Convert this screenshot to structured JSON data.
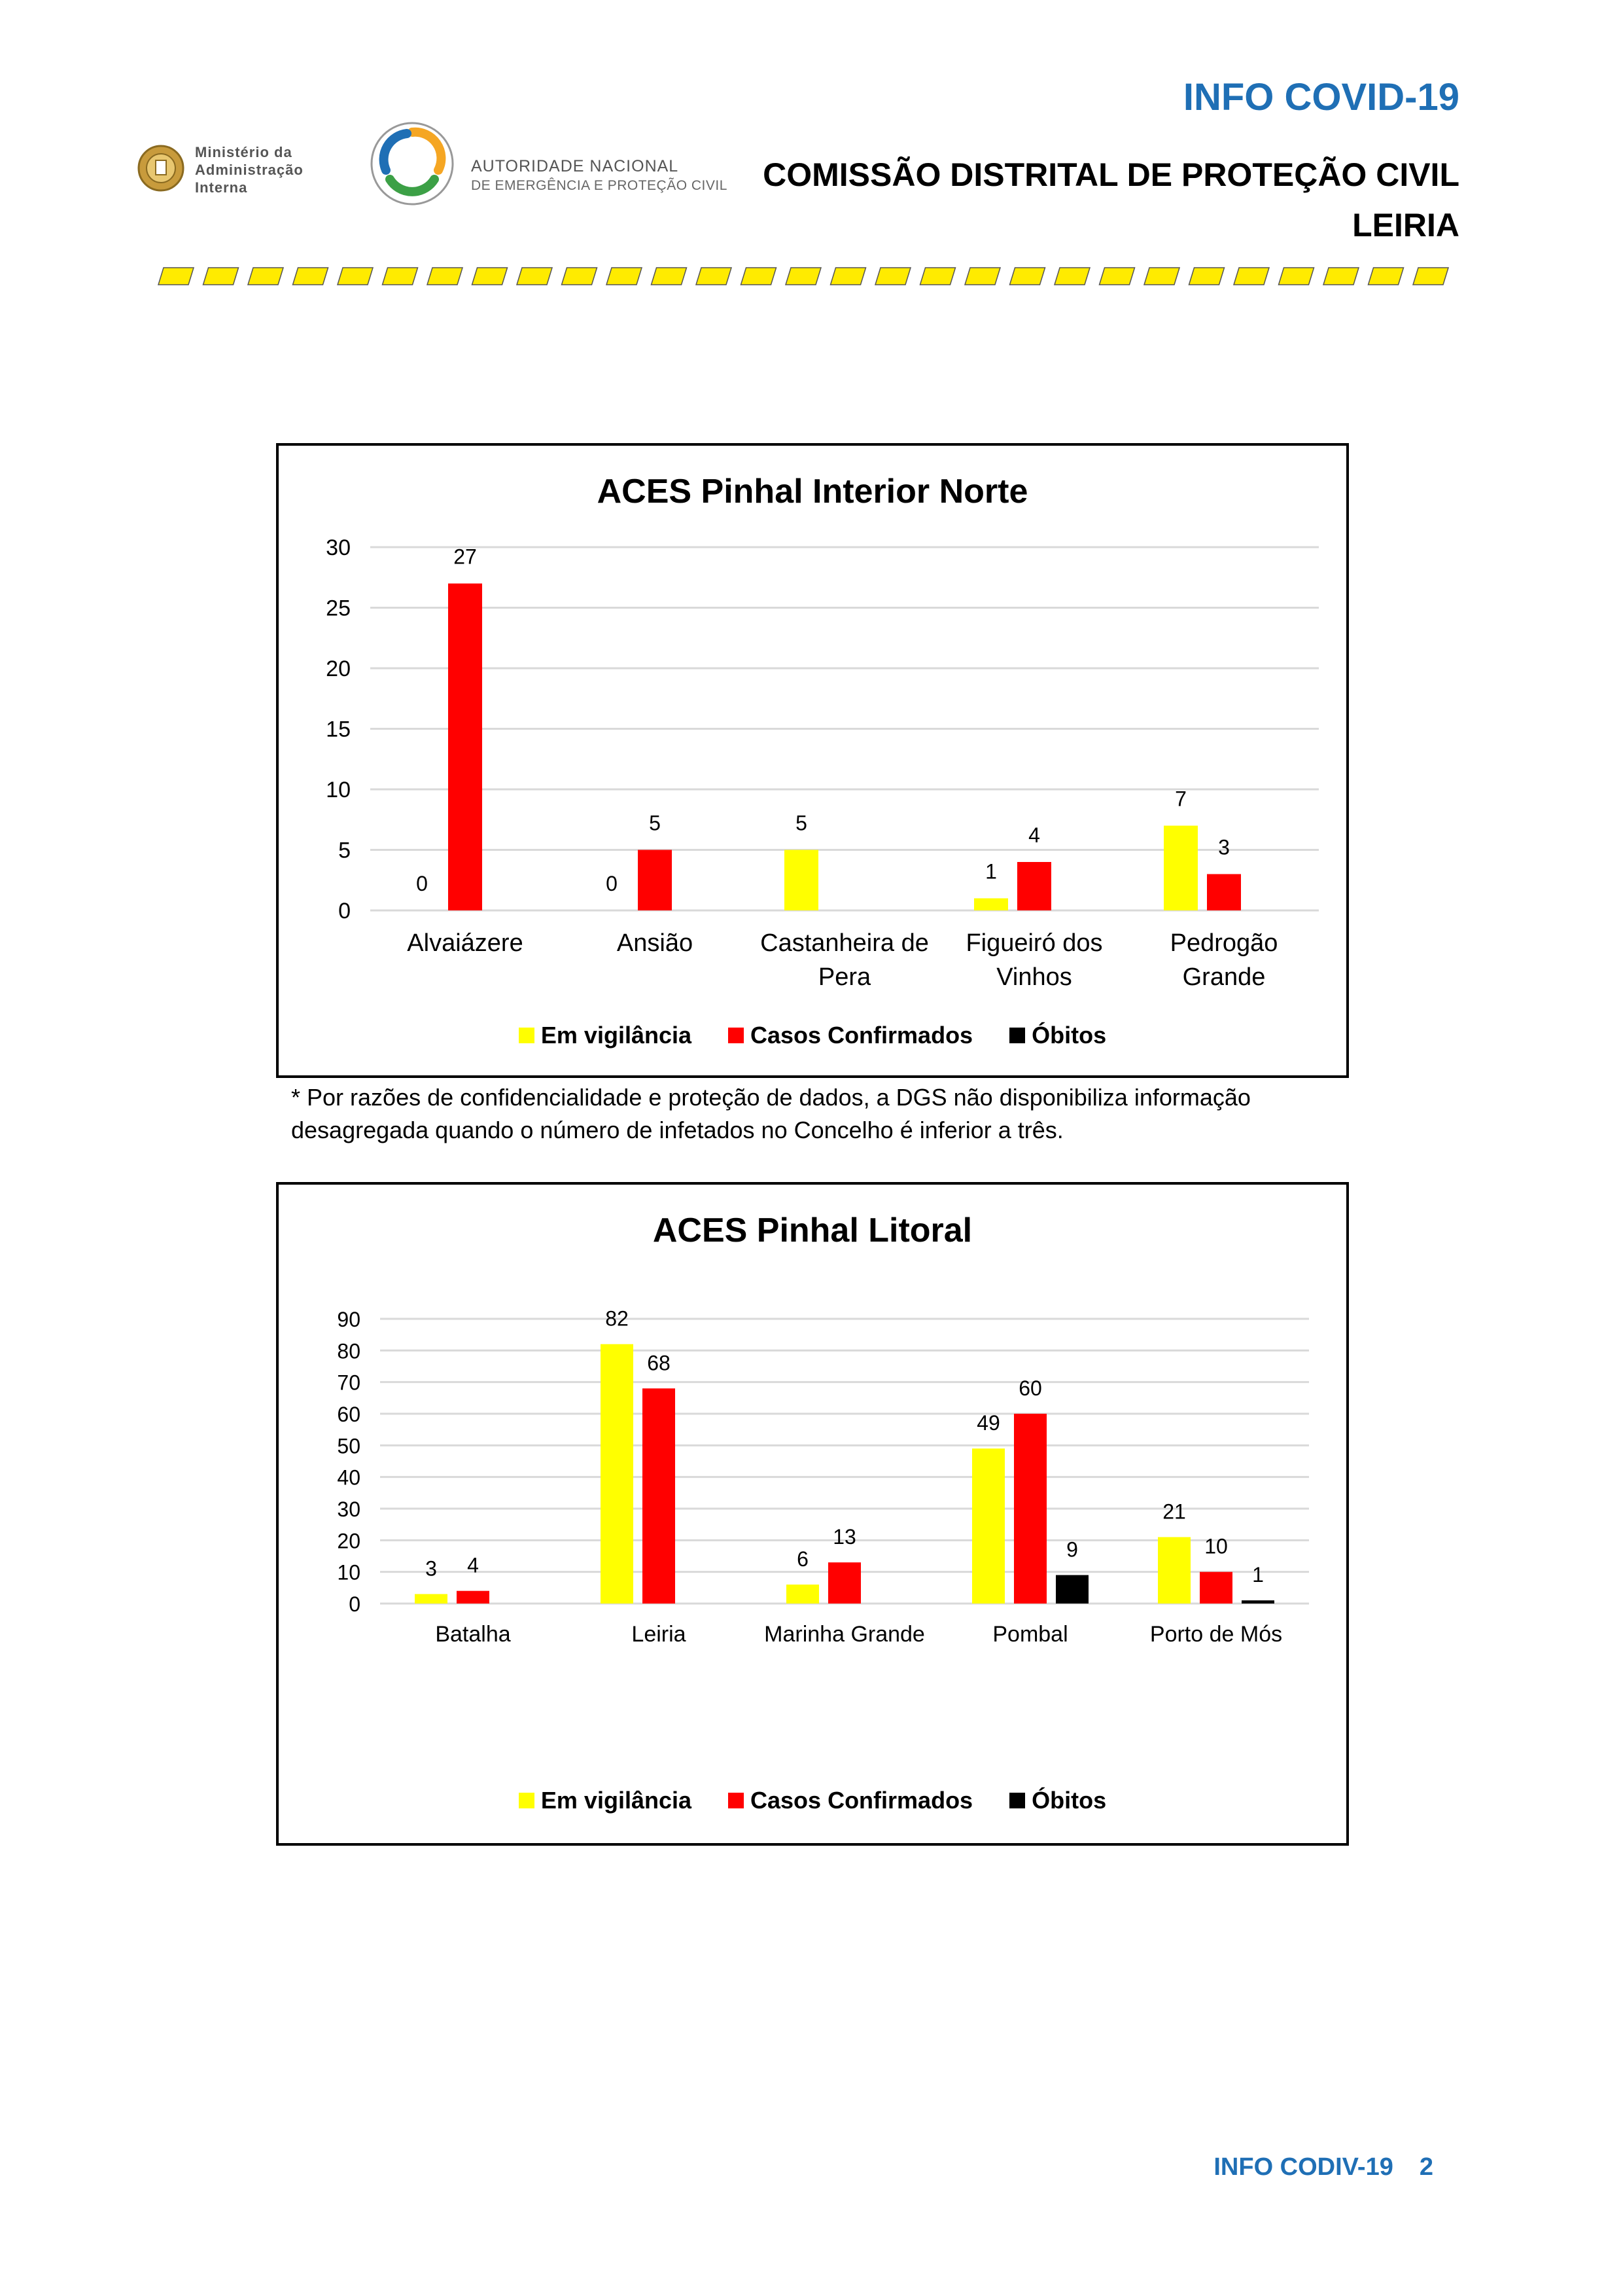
{
  "header": {
    "title": "INFO COVID-19",
    "organization": "COMISSÃO DISTRITAL DE PROTEÇÃO CIVIL",
    "region": "LEIRIA"
  },
  "logos": {
    "mai": {
      "line1": "Ministério da",
      "line2": "Administração",
      "line3": "Interna"
    },
    "anepc": {
      "line1": "AUTORIDADE NACIONAL",
      "line2": "DE EMERGÊNCIA E PROTEÇÃO CIVIL"
    }
  },
  "colors": {
    "brand_blue": "#1F6FB5",
    "em_vigilancia": "#FFFF00",
    "casos_confirmados": "#FF0000",
    "obitos": "#000000",
    "gridline": "#D9D9D9",
    "stripe_yellow": "#FFEB00"
  },
  "legend": [
    "Em vigilância",
    "Casos Confirmados",
    "Óbitos"
  ],
  "footnote": "* Por razões de confidencialidade e proteção de dados, a DGS não disponibiliza informação desagregada quando o número de infetados no Concelho é inferior a três.",
  "chart_data": [
    {
      "type": "bar",
      "title": "ACES Pinhal Interior Norte",
      "categories": [
        "Alvaiázere",
        "Ansião",
        "Castanheira de Pera",
        "Figueiró dos Vinhos",
        "Pedrogão Grande"
      ],
      "series": [
        {
          "name": "Em vigilância",
          "values": [
            0,
            0,
            5,
            1,
            7
          ],
          "labels": [
            "0",
            "0",
            "5",
            "1",
            "7"
          ]
        },
        {
          "name": "Casos Confirmados",
          "values": [
            27,
            5,
            null,
            4,
            3
          ],
          "labels": [
            "27",
            "5",
            "",
            "4",
            "3"
          ]
        },
        {
          "name": "Óbitos",
          "values": [
            null,
            null,
            null,
            null,
            null
          ],
          "labels": [
            "",
            "",
            "",
            "",
            ""
          ]
        }
      ],
      "ylim": [
        0,
        30
      ],
      "yticks": [
        0,
        5,
        10,
        15,
        20,
        25,
        30
      ],
      "grid": true,
      "legend_position": "bottom"
    },
    {
      "type": "bar",
      "title": "ACES Pinhal Litoral",
      "categories": [
        "Batalha",
        "Leiria",
        "Marinha Grande",
        "Pombal",
        "Porto de Mós"
      ],
      "series": [
        {
          "name": "Em vigilância",
          "values": [
            3,
            82,
            6,
            49,
            21
          ],
          "labels": [
            "3",
            "82",
            "6",
            "49",
            "21"
          ]
        },
        {
          "name": "Casos Confirmados",
          "values": [
            4,
            68,
            13,
            60,
            10
          ],
          "labels": [
            "4",
            "68",
            "13",
            "60",
            "10"
          ]
        },
        {
          "name": "Óbitos",
          "values": [
            null,
            null,
            null,
            9,
            1
          ],
          "labels": [
            "",
            "",
            "",
            "9",
            "1"
          ]
        }
      ],
      "ylim": [
        0,
        90
      ],
      "yticks": [
        0,
        10,
        20,
        30,
        40,
        50,
        60,
        70,
        80,
        90
      ],
      "grid": true,
      "legend_position": "bottom"
    }
  ],
  "footer": {
    "label": "INFO CODIV-19",
    "page": "2"
  }
}
